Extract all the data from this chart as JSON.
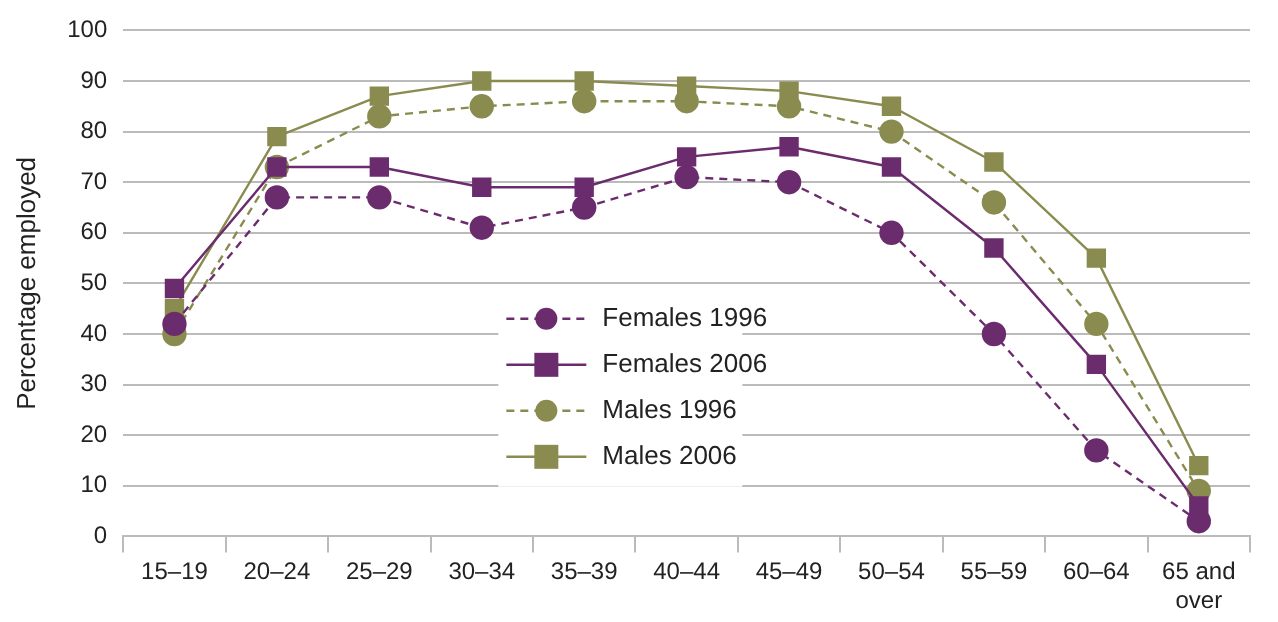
{
  "chart_data": {
    "type": "line",
    "ylabel": "Percentage employed",
    "categories": [
      "15–19",
      "20–24",
      "25–29",
      "30–34",
      "35–39",
      "40–44",
      "45–49",
      "50–54",
      "55–59",
      "60–64",
      "65 and over"
    ],
    "series": [
      {
        "name": "Females 1996",
        "color": "#6b2c6e",
        "line_style": "dashed",
        "marker": "circle",
        "values": [
          42,
          67,
          67,
          61,
          65,
          71,
          70,
          60,
          40,
          17,
          3
        ]
      },
      {
        "name": "Females 2006",
        "color": "#6b2c6e",
        "line_style": "solid",
        "marker": "square",
        "values": [
          49,
          73,
          73,
          69,
          69,
          75,
          77,
          73,
          57,
          34,
          6
        ]
      },
      {
        "name": "Males 1996",
        "color": "#8a8c4f",
        "line_style": "dashed",
        "marker": "circle",
        "values": [
          40,
          73,
          83,
          85,
          86,
          86,
          85,
          80,
          66,
          42,
          9
        ]
      },
      {
        "name": "Males 2006",
        "color": "#8a8c4f",
        "line_style": "solid",
        "marker": "square",
        "values": [
          45,
          79,
          87,
          90,
          90,
          89,
          88,
          85,
          74,
          55,
          14
        ]
      }
    ],
    "ylim": [
      0,
      100
    ],
    "yticks": [
      0,
      10,
      20,
      30,
      40,
      50,
      60,
      70,
      80,
      90,
      100
    ],
    "grid": "y",
    "legend": "center"
  }
}
